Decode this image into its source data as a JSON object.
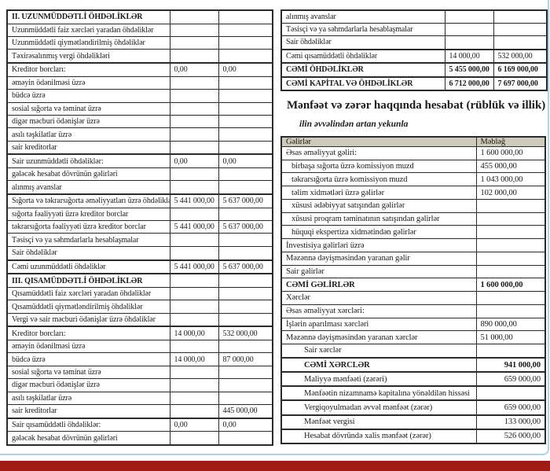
{
  "page": {
    "frame_color": "#a7d6e8",
    "footer_bar_color": "#a01b14",
    "table_header_bg": "#cecbba"
  },
  "balance_left": {
    "rows": [
      {
        "label": "II. UZUNMÜDDƏTLİ ÖHDƏLİKLƏR",
        "v1": "",
        "v2": "",
        "bold": true
      },
      {
        "label": "Uzunmüddətli faiz xərcləri yaradan öhdəliklər",
        "v1": "",
        "v2": ""
      },
      {
        "label": "Uzunmüddətli qiymətləndirilmiş öhdəliklər",
        "v1": "",
        "v2": ""
      },
      {
        "label": "Təxirəsalınmış vergi öhdəlikləri",
        "v1": "",
        "v2": ""
      },
      {
        "label": "Kreditor borcları:",
        "v1": "0,00",
        "v2": "0,00",
        "sep": true
      },
      {
        "label": "əməyin ödənilməsi üzrə",
        "v1": "",
        "v2": ""
      },
      {
        "label": "büdcə üzrə",
        "v1": "",
        "v2": ""
      },
      {
        "label": "sosial sığorta və təminat üzrə",
        "v1": "",
        "v2": ""
      },
      {
        "label": "digər məcburi ödənişlər üzrə",
        "v1": "",
        "v2": ""
      },
      {
        "label": "asılı təşkilatlar üzrə",
        "v1": "",
        "v2": ""
      },
      {
        "label": "sair kreditorlar",
        "v1": "",
        "v2": ""
      },
      {
        "label": "Sair uzunmüddətli öhdəliklər:",
        "v1": "0,00",
        "v2": "0,00",
        "sep": true
      },
      {
        "label": "gələcək hesabat dövrünün gəlirləri",
        "v1": "",
        "v2": ""
      },
      {
        "label": "alınmış avanslar",
        "v1": "",
        "v2": ""
      },
      {
        "label": "Sığorta və təkrarsığorta əməliyyatları üzrə öhdəliklər:",
        "v1": "5 441 000,00",
        "v2": "5 637 000,00",
        "sep": true
      },
      {
        "label": "sığorta fəaliyyəti üzrə kreditor borclar",
        "v1": "",
        "v2": ""
      },
      {
        "label": "təkrarsığorta fəaliyyəti üzrə kreditor borclar",
        "v1": "5 441 000,00",
        "v2": "5 637 000,00"
      },
      {
        "label": "Təsisçi və ya səhmdarlarla hesablaşmalar",
        "v1": "",
        "v2": ""
      },
      {
        "label": "Sair öhdəliklər",
        "v1": "",
        "v2": ""
      },
      {
        "label": "Cəmi uzunmüddətli öhdəliklər",
        "v1": "5 441 000,00",
        "v2": "5 637 000,00",
        "sep": true
      },
      {
        "label": "III. QISAMÜDDƏTLİ ÖHDƏLİKLƏR",
        "v1": "",
        "v2": "",
        "bold": true,
        "sep": true
      },
      {
        "label": "Qısamüddətli faiz xərcləri yaradan öhdəliklər",
        "v1": "",
        "v2": ""
      },
      {
        "label": "Qısamüddətli qiymətləndirilmiş öhdəliklər",
        "v1": "",
        "v2": ""
      },
      {
        "label": "Vergi və sair məcburi ödənişlər üzrə öhdəliklər",
        "v1": "",
        "v2": ""
      },
      {
        "label": "Kreditor borcları:",
        "v1": "14 000,00",
        "v2": "532 000,00",
        "sep": true
      },
      {
        "label": "əməyin ödənilməsi üzrə",
        "v1": "",
        "v2": ""
      },
      {
        "label": "büdcə üzrə",
        "v1": "14 000,00",
        "v2": "87 000,00"
      },
      {
        "label": "sosial sığorta və təminat üzrə",
        "v1": "",
        "v2": ""
      },
      {
        "label": "digər məcburi ödənişlər üzrə",
        "v1": "",
        "v2": ""
      },
      {
        "label": "asılı təşkilatlar üzrə",
        "v1": "",
        "v2": ""
      },
      {
        "label": "sair kreditorlar",
        "v1": "",
        "v2": "445 000,00"
      },
      {
        "label": "Sair qısamüddətli öhdəliklər:",
        "v1": "0,00",
        "v2": "0,00",
        "sep": true
      },
      {
        "label": "gələcək hesabat dövrünün gəlirləri",
        "v1": "",
        "v2": ""
      }
    ]
  },
  "balance_right": {
    "rows": [
      {
        "label": "alınmış avanslar",
        "v1": "",
        "v2": ""
      },
      {
        "label": "Təsisçi və ya səhmdarlarla hesablaşmalar",
        "v1": "",
        "v2": ""
      },
      {
        "label": "Sair öhdəliklər",
        "v1": "",
        "v2": ""
      },
      {
        "label": "Cəmi qısamüddətli öhdəliklər",
        "v1": "14 000,00",
        "v2": "532 000,00",
        "sep": true
      },
      {
        "label": "CƏMİ ÖHDƏLİKLƏR",
        "v1": "5 455 000,00",
        "v2": "6 169 000,00",
        "bold": true,
        "sep": true
      },
      {
        "label": "CƏMİ KAPİTAL VƏ ÖHDƏLİKLƏR",
        "v1": "6 712 000,00",
        "v2": "7 697 000,00",
        "bold": true,
        "sep": true
      }
    ]
  },
  "income": {
    "title": "Mənfəət və zərər haqqında hesabat (rüblük və illik)",
    "subtitle": "ilin əvvəlindən artan yekunla",
    "header": {
      "label": "Gəlirlər",
      "value": "Məbləğ"
    },
    "rows": [
      {
        "label": "Əsas əməliyyat gəliri:",
        "value": "1 600 000,00"
      },
      {
        "label": "birbaşa sığorta üzrə komissiyon muzd",
        "value": "455 000,00",
        "indent": 1
      },
      {
        "label": "təkrarsığorta üzrə komissiyon muzd",
        "value": "1 043 000,00",
        "indent": 1
      },
      {
        "label": "təlim xidmətləri üzrə gəlirlər",
        "value": "102 000,00",
        "indent": 1
      },
      {
        "label": "xüsusi ədəbiyyat satışından gəlirlər",
        "value": "",
        "indent": 1
      },
      {
        "label": "xüsusi proqram təminatının satışından gəlirlər",
        "value": "",
        "indent": 1
      },
      {
        "label": "hüquqi ekspertiza xidmətindən gəlirlər",
        "value": "",
        "indent": 1
      },
      {
        "label": "İnvestisiya gəlirləri üzrə",
        "value": ""
      },
      {
        "label": "Məzənnə dəyişməsindən yaranan gəlir",
        "value": ""
      },
      {
        "label": "Sair gəlirlər",
        "value": ""
      },
      {
        "label": "CƏMİ GƏLİRLƏR",
        "value": "1 600 000,00",
        "bold": true
      },
      {
        "label": "Xərclər",
        "value": ""
      },
      {
        "label": "Əsas əməliyyat xərcləri:",
        "value": ""
      },
      {
        "label": "İşlərin aparılması xərcləri",
        "value": "890 000,00"
      },
      {
        "label": "Məzənnə dəyişməsindən yaranan xərclər",
        "value": "51 000,00"
      },
      {
        "label": "Sair xərclər",
        "value": "",
        "indent": 2
      },
      {
        "label": "CƏMİ XƏRCLƏR",
        "value": "941 000,00",
        "bold": true,
        "indent": 2,
        "sep": true,
        "align": "right"
      },
      {
        "label": "Maliyyə mənfəəti (zərəri)",
        "value": "659 000,00",
        "indent": 2,
        "sep": true,
        "align": "right"
      },
      {
        "label": "Mənfəətin nizamnamə kapitalına yönəldilən hissəsi",
        "value": "",
        "indent": 2,
        "sep": true
      },
      {
        "label": "Vergiqoyulmadan əvvəl mənfəət (zərər)",
        "value": "659 000,00",
        "indent": 2,
        "sep": true,
        "align": "right"
      },
      {
        "label": "Mənfəət vergisi",
        "value": "133 000,00",
        "indent": 2,
        "sep": true,
        "align": "right"
      },
      {
        "label": "Hesabat dövründə xalis mənfəət (zərər)",
        "value": "526 000,00",
        "indent": 2,
        "sep": true,
        "align": "right"
      }
    ]
  }
}
